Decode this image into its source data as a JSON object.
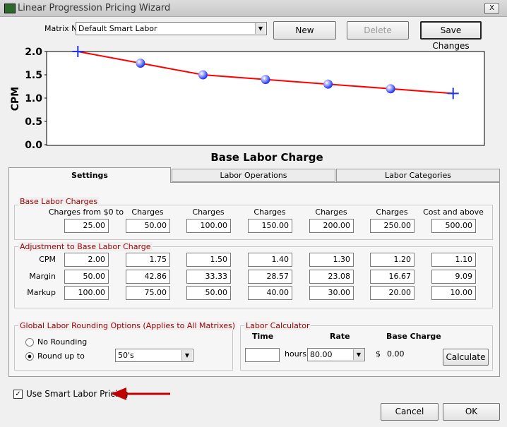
{
  "window": {
    "title": "Linear Progression Pricing Wizard",
    "close": "X"
  },
  "matrix": {
    "label": "Matrix Name:",
    "value": "Default Smart Labor"
  },
  "buttons": {
    "new": "New",
    "delete": "Delete",
    "save": "Save Changes",
    "calculate": "Calculate",
    "cancel": "Cancel",
    "ok": "OK"
  },
  "chart_data": {
    "type": "line",
    "x_label": "Base Labor Charge",
    "y_label": "CPM",
    "categories": [
      null,
      null,
      null,
      null,
      null,
      null,
      null
    ],
    "values": [
      2.0,
      1.75,
      1.5,
      1.4,
      1.3,
      1.2,
      1.1
    ],
    "color": "#ff0000",
    "marker_color": "#2233ee",
    "ylim": [
      0,
      2
    ],
    "yticks": [
      {
        "value": 0,
        "label": "0.0"
      },
      {
        "value": 0.5,
        "label": "0.5"
      },
      {
        "value": 1,
        "label": "1.0"
      },
      {
        "value": 1.5,
        "label": "1.5"
      },
      {
        "value": 2,
        "label": "2.0"
      }
    ],
    "grid": false
  },
  "tabs": [
    "Settings",
    "Labor Operations",
    "Labor Categories"
  ],
  "base_labor": {
    "legend": "Base Labor Charges",
    "headers": [
      "Charges from $0 to",
      "Charges",
      "Charges",
      "Charges",
      "Charges",
      "Charges",
      "Cost and above"
    ],
    "values": [
      "25.00",
      "50.00",
      "100.00",
      "150.00",
      "200.00",
      "250.00",
      "500.00"
    ]
  },
  "adjustment": {
    "legend": "Adjustment to Base Labor Charge",
    "rows": [
      {
        "label": "CPM",
        "values": [
          "2.00",
          "1.75",
          "1.50",
          "1.40",
          "1.30",
          "1.20",
          "1.10"
        ]
      },
      {
        "label": "Margin",
        "values": [
          "50.00",
          "42.86",
          "33.33",
          "28.57",
          "23.08",
          "16.67",
          "9.09"
        ]
      },
      {
        "label": "Markup",
        "values": [
          "100.00",
          "75.00",
          "50.00",
          "40.00",
          "30.00",
          "20.00",
          "10.00"
        ]
      }
    ]
  },
  "rounding": {
    "legend": "Global Labor Rounding Options (Applies to All Matrixes)",
    "options": [
      "No Rounding",
      "Round up to"
    ],
    "select": "50's"
  },
  "calculator": {
    "legend": "Labor Calculator",
    "time": "Time",
    "rate": "Rate",
    "base_charge": "Base Charge",
    "hours": "hours",
    "rate_value": "80.00",
    "currency": "$",
    "amount": "0.00"
  },
  "smart_labor": "Use Smart Labor Pricing"
}
